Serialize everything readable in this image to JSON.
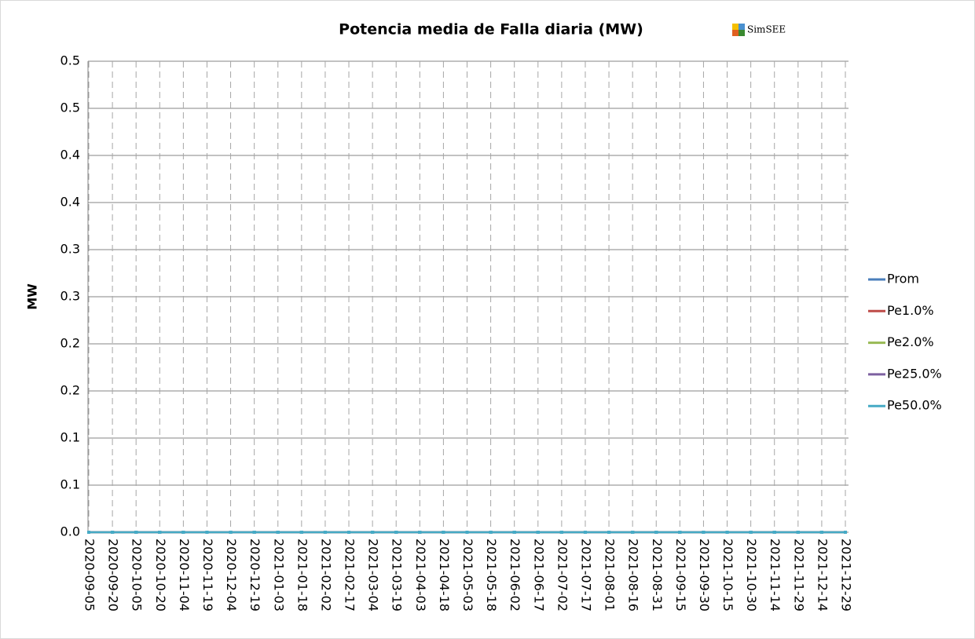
{
  "chart_data": {
    "type": "line",
    "title": "Potencia media de Falla diaria (MW)",
    "logo_text": "SimSEE",
    "y_label": "MW",
    "categories": [
      "2020-09-05",
      "2020-09-20",
      "2020-10-05",
      "2020-10-20",
      "2020-11-04",
      "2020-11-19",
      "2020-12-04",
      "2020-12-19",
      "2021-01-03",
      "2021-01-18",
      "2021-02-02",
      "2021-02-17",
      "2021-03-04",
      "2021-03-19",
      "2021-04-03",
      "2021-04-18",
      "2021-05-03",
      "2021-05-18",
      "2021-06-02",
      "2021-06-17",
      "2021-07-02",
      "2021-07-17",
      "2021-08-01",
      "2021-08-16",
      "2021-08-31",
      "2021-09-15",
      "2021-09-30",
      "2021-10-15",
      "2021-10-30",
      "2021-11-14",
      "2021-11-29",
      "2021-12-14",
      "2021-12-29"
    ],
    "series": [
      {
        "name": "Prom",
        "color": "#4a7ebb",
        "values": [
          0,
          0,
          0,
          0,
          0,
          0,
          0,
          0,
          0,
          0,
          0,
          0,
          0,
          0,
          0,
          0,
          0,
          0,
          0,
          0,
          0,
          0,
          0,
          0,
          0,
          0,
          0,
          0,
          0,
          0,
          0,
          0,
          0
        ]
      },
      {
        "name": "Pe1.0%",
        "color": "#be4b48",
        "values": [
          0,
          0,
          0,
          0,
          0,
          0,
          0,
          0,
          0,
          0,
          0,
          0,
          0,
          0,
          0,
          0,
          0,
          0,
          0,
          0,
          0,
          0,
          0,
          0,
          0,
          0,
          0,
          0,
          0,
          0,
          0,
          0,
          0
        ]
      },
      {
        "name": "Pe2.0%",
        "color": "#98b954",
        "values": [
          0,
          0,
          0,
          0,
          0,
          0,
          0,
          0,
          0,
          0,
          0,
          0,
          0,
          0,
          0,
          0,
          0,
          0,
          0,
          0,
          0,
          0,
          0,
          0,
          0,
          0,
          0,
          0,
          0,
          0,
          0,
          0,
          0
        ]
      },
      {
        "name": "Pe25.0%",
        "color": "#7d60a0",
        "values": [
          0,
          0,
          0,
          0,
          0,
          0,
          0,
          0,
          0,
          0,
          0,
          0,
          0,
          0,
          0,
          0,
          0,
          0,
          0,
          0,
          0,
          0,
          0,
          0,
          0,
          0,
          0,
          0,
          0,
          0,
          0,
          0,
          0
        ]
      },
      {
        "name": "Pe50.0%",
        "color": "#46aac5",
        "values": [
          0,
          0,
          0,
          0,
          0,
          0,
          0,
          0,
          0,
          0,
          0,
          0,
          0,
          0,
          0,
          0,
          0,
          0,
          0,
          0,
          0,
          0,
          0,
          0,
          0,
          0,
          0,
          0,
          0,
          0,
          0,
          0,
          0
        ]
      }
    ],
    "ylim": [
      0,
      0.5
    ],
    "yticks": [
      {
        "value": 0,
        "label": "0.0"
      },
      {
        "value": 0.05,
        "label": "0.1"
      },
      0.1,
      {
        "value": 0.15,
        "label": "0.2"
      },
      0.2,
      {
        "value": 0.25,
        "label": "0.3"
      },
      0.3,
      {
        "value": 0.35,
        "label": "0.4"
      },
      0.4,
      {
        "value": 0.45,
        "label": "0.5"
      },
      0.5
    ],
    "grid": true,
    "x_grid": "dashed",
    "legend": "right"
  }
}
